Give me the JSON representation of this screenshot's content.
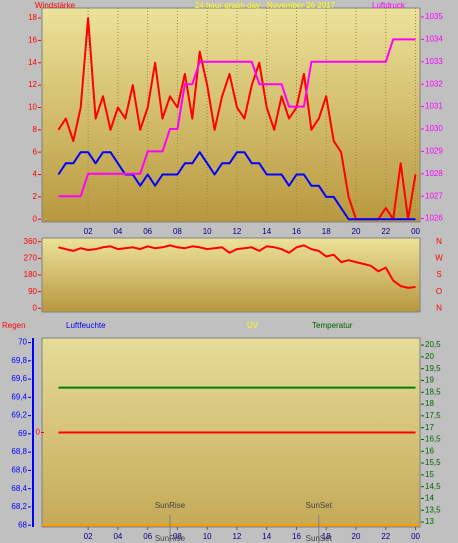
{
  "chart_data": [
    {
      "type": "line",
      "title": "24 hour graph day - November 26 2017",
      "ylabel": "Windstärke",
      "y2label": "Luftdruck",
      "x": [
        0,
        0.5,
        1,
        1.5,
        2,
        2.5,
        3,
        3.5,
        4,
        4.5,
        5,
        5.5,
        6,
        6.5,
        7,
        7.5,
        8,
        8.5,
        9,
        9.5,
        10,
        10.5,
        11,
        11.5,
        12,
        12.5,
        13,
        13.5,
        14,
        14.5,
        15,
        15.5,
        16,
        16.5,
        17,
        17.5,
        18,
        18.5,
        19,
        19.5,
        20,
        20.5,
        21,
        21.5,
        22,
        22.5,
        23,
        23.5,
        24
      ],
      "xlim": [
        -1.1,
        24.3
      ],
      "xticks": [
        {
          "value": 2,
          "label": "02"
        },
        {
          "value": 4,
          "label": "04"
        },
        {
          "value": 6,
          "label": "06"
        },
        {
          "value": 8,
          "label": "08"
        },
        10,
        12,
        14,
        16,
        18,
        20,
        22,
        {
          "value": 24,
          "label": "00"
        }
      ],
      "ylim": [
        -0.25,
        18.9
      ],
      "yticks": [
        0,
        2,
        4,
        6,
        8,
        10,
        12,
        14,
        16,
        18
      ],
      "y2lim": [
        1025.85,
        1035.4
      ],
      "y2ticks": [
        1026,
        1027,
        1028,
        1029,
        1030,
        1031,
        1032,
        1033,
        1034,
        1035
      ],
      "grid": true,
      "series": [
        {
          "color": "#ff0000",
          "values": [
            8,
            9,
            7,
            10,
            18,
            9,
            11,
            8,
            10,
            9,
            12,
            8,
            10,
            14,
            9,
            11,
            10,
            13,
            9,
            15,
            12,
            8,
            11,
            13,
            10,
            9,
            12,
            14,
            10,
            8,
            11,
            9,
            10,
            13,
            8,
            9,
            11,
            7,
            6,
            2,
            0,
            0,
            0,
            0,
            1,
            0,
            5,
            0,
            4
          ]
        },
        {
          "color": "#0000ff",
          "values": [
            4,
            5,
            5,
            6,
            6,
            5,
            6,
            6,
            5,
            4,
            4,
            3,
            4,
            3,
            4,
            4,
            4,
            5,
            5,
            6,
            5,
            4,
            5,
            5,
            6,
            6,
            5,
            5,
            4,
            4,
            4,
            3,
            4,
            4,
            3,
            3,
            2,
            2,
            1,
            0,
            0,
            0,
            0,
            0,
            0,
            0,
            0,
            0,
            0
          ]
        },
        {
          "color": "#ff00ff",
          "axis": "y2",
          "values": [
            1027,
            1027,
            1027,
            1027,
            1028,
            1028,
            1028,
            1028,
            1028,
            1028,
            1028,
            1028,
            1029,
            1029,
            1029,
            1030,
            1030,
            1032,
            1032,
            1033,
            1033,
            1033,
            1033,
            1033,
            1033,
            1033,
            1033,
            1032,
            1032,
            1032,
            1032,
            1031,
            1031,
            1031,
            1033,
            1033,
            1033,
            1033,
            1033,
            1033,
            1033,
            1033,
            1033,
            1033,
            1033,
            1034,
            1034,
            1034,
            1034
          ]
        }
      ]
    },
    {
      "type": "line",
      "x": [
        0,
        0.5,
        1,
        1.5,
        2,
        2.5,
        3,
        3.5,
        4,
        4.5,
        5,
        5.5,
        6,
        6.5,
        7,
        7.5,
        8,
        8.5,
        9,
        9.5,
        10,
        10.5,
        11,
        11.5,
        12,
        12.5,
        13,
        13.5,
        14,
        14.5,
        15,
        15.5,
        16,
        16.5,
        17,
        17.5,
        18,
        18.5,
        19,
        19.5,
        20,
        20.5,
        21,
        21.5,
        22,
        22.5,
        23,
        23.5,
        24
      ],
      "xlim": [
        -1.1,
        24.3
      ],
      "ylim": [
        -20,
        380
      ],
      "yticks": [
        0,
        90,
        180,
        270,
        360
      ],
      "compass": [
        "N",
        "W",
        "S",
        "O",
        "N"
      ],
      "series": [
        {
          "color": "#ff0000",
          "values": [
            330,
            320,
            310,
            325,
            315,
            320,
            330,
            335,
            320,
            325,
            330,
            320,
            335,
            325,
            330,
            340,
            330,
            325,
            335,
            330,
            320,
            325,
            330,
            300,
            320,
            325,
            330,
            310,
            335,
            330,
            320,
            300,
            330,
            340,
            320,
            310,
            280,
            290,
            250,
            260,
            250,
            240,
            230,
            200,
            220,
            150,
            120,
            110,
            115
          ]
        }
      ]
    },
    {
      "type": "line",
      "rain_label": "Regen",
      "ylabel": "Luftfeuchte",
      "uv_label": "UV",
      "y2label": "Temperatur",
      "x": [
        0,
        24
      ],
      "xlim": [
        -1.1,
        24.3
      ],
      "xticks": [
        {
          "value": 2,
          "label": "02"
        },
        {
          "value": 4,
          "label": "04"
        },
        {
          "value": 6,
          "label": "06"
        },
        {
          "value": 8,
          "label": "08"
        },
        10,
        12,
        14,
        16,
        18,
        20,
        22,
        {
          "value": 24,
          "label": "00"
        }
      ],
      "ylim": [
        67.98,
        70.05
      ],
      "yticks": [
        68,
        {
          "value": 68.2,
          "label": "68,2"
        },
        {
          "value": 68.4,
          "label": "68,4"
        },
        {
          "value": 68.6,
          "label": "68,6"
        },
        {
          "value": 68.8,
          "label": "68,8"
        },
        69,
        {
          "value": 69.2,
          "label": "69,2"
        },
        {
          "value": 69.4,
          "label": "69,4"
        },
        {
          "value": 69.6,
          "label": "69,6"
        },
        {
          "value": 69.8,
          "label": "69,8"
        },
        70
      ],
      "y2lim": [
        12.79,
        20.8
      ],
      "y2ticks": [
        13,
        {
          "value": 13.5,
          "label": "13,5"
        },
        14,
        {
          "value": 14.5,
          "label": "14,5"
        },
        15,
        {
          "value": 15.5,
          "label": "15,5"
        },
        16,
        {
          "value": 16.5,
          "label": "16,5"
        },
        17,
        {
          "value": 17.5,
          "label": "17,5"
        },
        18,
        {
          "value": 18.5,
          "label": "18,5"
        },
        19,
        {
          "value": 19.5,
          "label": "19,5"
        },
        20,
        {
          "value": 20.5,
          "label": "20,5"
        }
      ],
      "rainlim": [
        -1,
        1
      ],
      "rainticks": [
        0
      ],
      "series": [
        {
          "color": "#008000",
          "axis": "y2",
          "values": [
            18.7,
            18.7
          ]
        },
        {
          "color": "#ff0000",
          "axis": "rain",
          "values": [
            0,
            0
          ]
        }
      ],
      "annotations": [
        {
          "text": "SunRise",
          "x": 7.5
        },
        {
          "text": "SunSet",
          "x": 17.5
        }
      ]
    }
  ]
}
